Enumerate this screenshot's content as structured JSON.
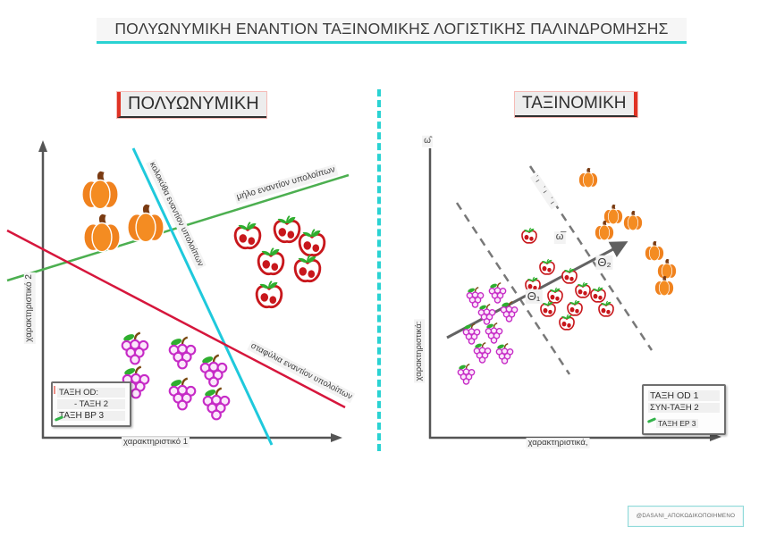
{
  "title": "ΠΟΛΥΩΝΥΜΙΚΗ ΕΝΑΝΤΙΟΝ ΤΑΞΙΝΟΜΙΚΗΣ ΛΟΓΙΣΤΙΚΗΣ ΠΑΛΙΝΔΡΟΜΗΣΗΣ",
  "watermark": "@DASANI_ΑΠΟΚΩΔΙΚΟΠΟΙΗΜΕΝΟ",
  "colors": {
    "accent_cyan": "#2ad2d2",
    "green_line": "#4caf50",
    "red_line": "#d6163c",
    "cyan_line": "#1fc9dc",
    "axis_gray": "#555555",
    "pumpkin_orange": "#f0821e",
    "strawberry_red": "#c8171c",
    "grape_magenta": "#c62ac6"
  },
  "left_panel": {
    "header": "ΠΟΛΥΩΝΥΜΙΚΗ",
    "y_axis_label": "χαρακτηριστικό 2",
    "x_axis_label": "χαρακτηριστικό 1",
    "line_labels": {
      "pumpkin_vs_rest": "κολοκύθα εναντίον υπολοίπων",
      "apple_vs_rest": "μήλο εναντίον υπολοίπων",
      "grapes_vs_rest": "σταφύλια εναντίον υπολοίπων"
    },
    "legend": {
      "rows": [
        "ΤΑΞΗ OD:",
        "- ΤΑΞΗ 2",
        "ΤΑΞΗ ΒΡ 3"
      ]
    },
    "fruits": [
      {
        "kind": "pumpkin",
        "size": 46,
        "points": [
          [
            112,
            213
          ],
          [
            163,
            250
          ],
          [
            114,
            261
          ]
        ]
      },
      {
        "kind": "strawberry",
        "size": 38,
        "points": [
          [
            277,
            264
          ],
          [
            321,
            257
          ],
          [
            349,
            272
          ],
          [
            303,
            293
          ],
          [
            344,
            301
          ],
          [
            301,
            330
          ]
        ]
      },
      {
        "kind": "grapes",
        "size": 42,
        "points": [
          [
            151,
            391
          ],
          [
            204,
            396
          ],
          [
            239,
            416
          ],
          [
            152,
            429
          ],
          [
            204,
            442
          ],
          [
            242,
            453
          ]
        ]
      }
    ]
  },
  "right_panel": {
    "header": "ΤΑΞΙΝΟΜΙΚΗ",
    "y_axis_label": "χαρακτηριστικά:",
    "x_axis_label": "χαρακτηριστικά,",
    "y_axis_top_symbol": "ω̂",
    "weight_vector_label": "ω̅",
    "theta1_label": "Θ₁",
    "theta2_label": "Θ₂",
    "boundary_annotation": "ʼι ʼι ʼι",
    "legend": {
      "rows": [
        "ΤΑΞΗ OD 1",
        "ΣΥΝ-ΤΑΞΗ 2",
        "ΤΑΞΗ ΕΡ 3"
      ]
    },
    "fruits": [
      {
        "kind": "grapes",
        "size": 27,
        "points": [
          [
            531,
            333
          ],
          [
            556,
            328
          ],
          [
            544,
            352
          ],
          [
            569,
            349
          ],
          [
            527,
            374
          ],
          [
            552,
            373
          ],
          [
            539,
            395
          ],
          [
            521,
            419
          ],
          [
            564,
            396
          ]
        ]
      },
      {
        "kind": "strawberry",
        "size": 22,
        "points": [
          [
            592,
            264
          ],
          [
            612,
            299
          ],
          [
            596,
            319
          ],
          [
            637,
            309
          ],
          [
            621,
            331
          ],
          [
            652,
            325
          ],
          [
            669,
            330
          ],
          [
            613,
            346
          ],
          [
            643,
            345
          ],
          [
            678,
            346
          ],
          [
            634,
            361
          ]
        ]
      },
      {
        "kind": "pumpkin",
        "size": 24,
        "points": [
          [
            658,
            199
          ],
          [
            686,
            240
          ],
          [
            676,
            258
          ],
          [
            708,
            247
          ],
          [
            732,
            281
          ],
          [
            746,
            301
          ],
          [
            743,
            320
          ]
        ]
      }
    ]
  }
}
